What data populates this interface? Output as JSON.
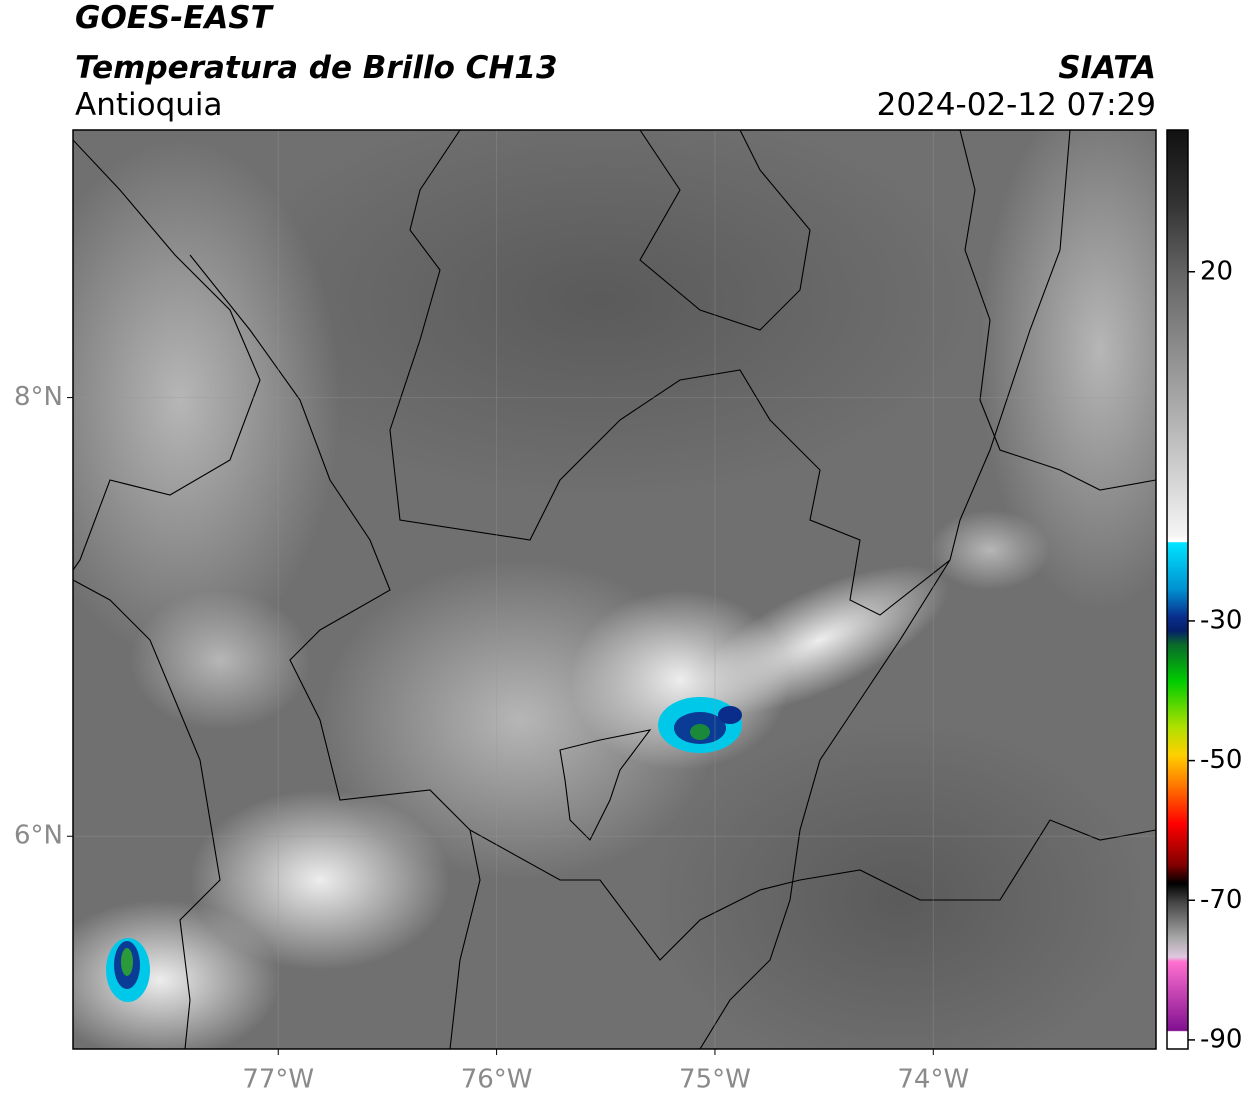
{
  "header": {
    "title": "GOES-EAST",
    "subtitle": "Temperatura de Brillo CH13",
    "region": "Antioquia",
    "source": "SIATA",
    "timestamp": "2024-02-12 07:29"
  },
  "map": {
    "xlim": [
      -77.94,
      -72.98
    ],
    "ylim": [
      5.03,
      9.22
    ],
    "xticks": [
      {
        "value": -77,
        "label": "77°W"
      },
      {
        "value": -76,
        "label": "76°W"
      },
      {
        "value": -75,
        "label": "75°W"
      },
      {
        "value": -74,
        "label": "74°W"
      }
    ],
    "yticks": [
      {
        "value": 6,
        "label": "6°N"
      },
      {
        "value": 8,
        "label": "8°N"
      }
    ],
    "grid": true
  },
  "colorbar": {
    "lim": [
      -91.3,
      40.3
    ],
    "ticks": [
      20,
      -30,
      -50,
      -70,
      -90
    ]
  }
}
